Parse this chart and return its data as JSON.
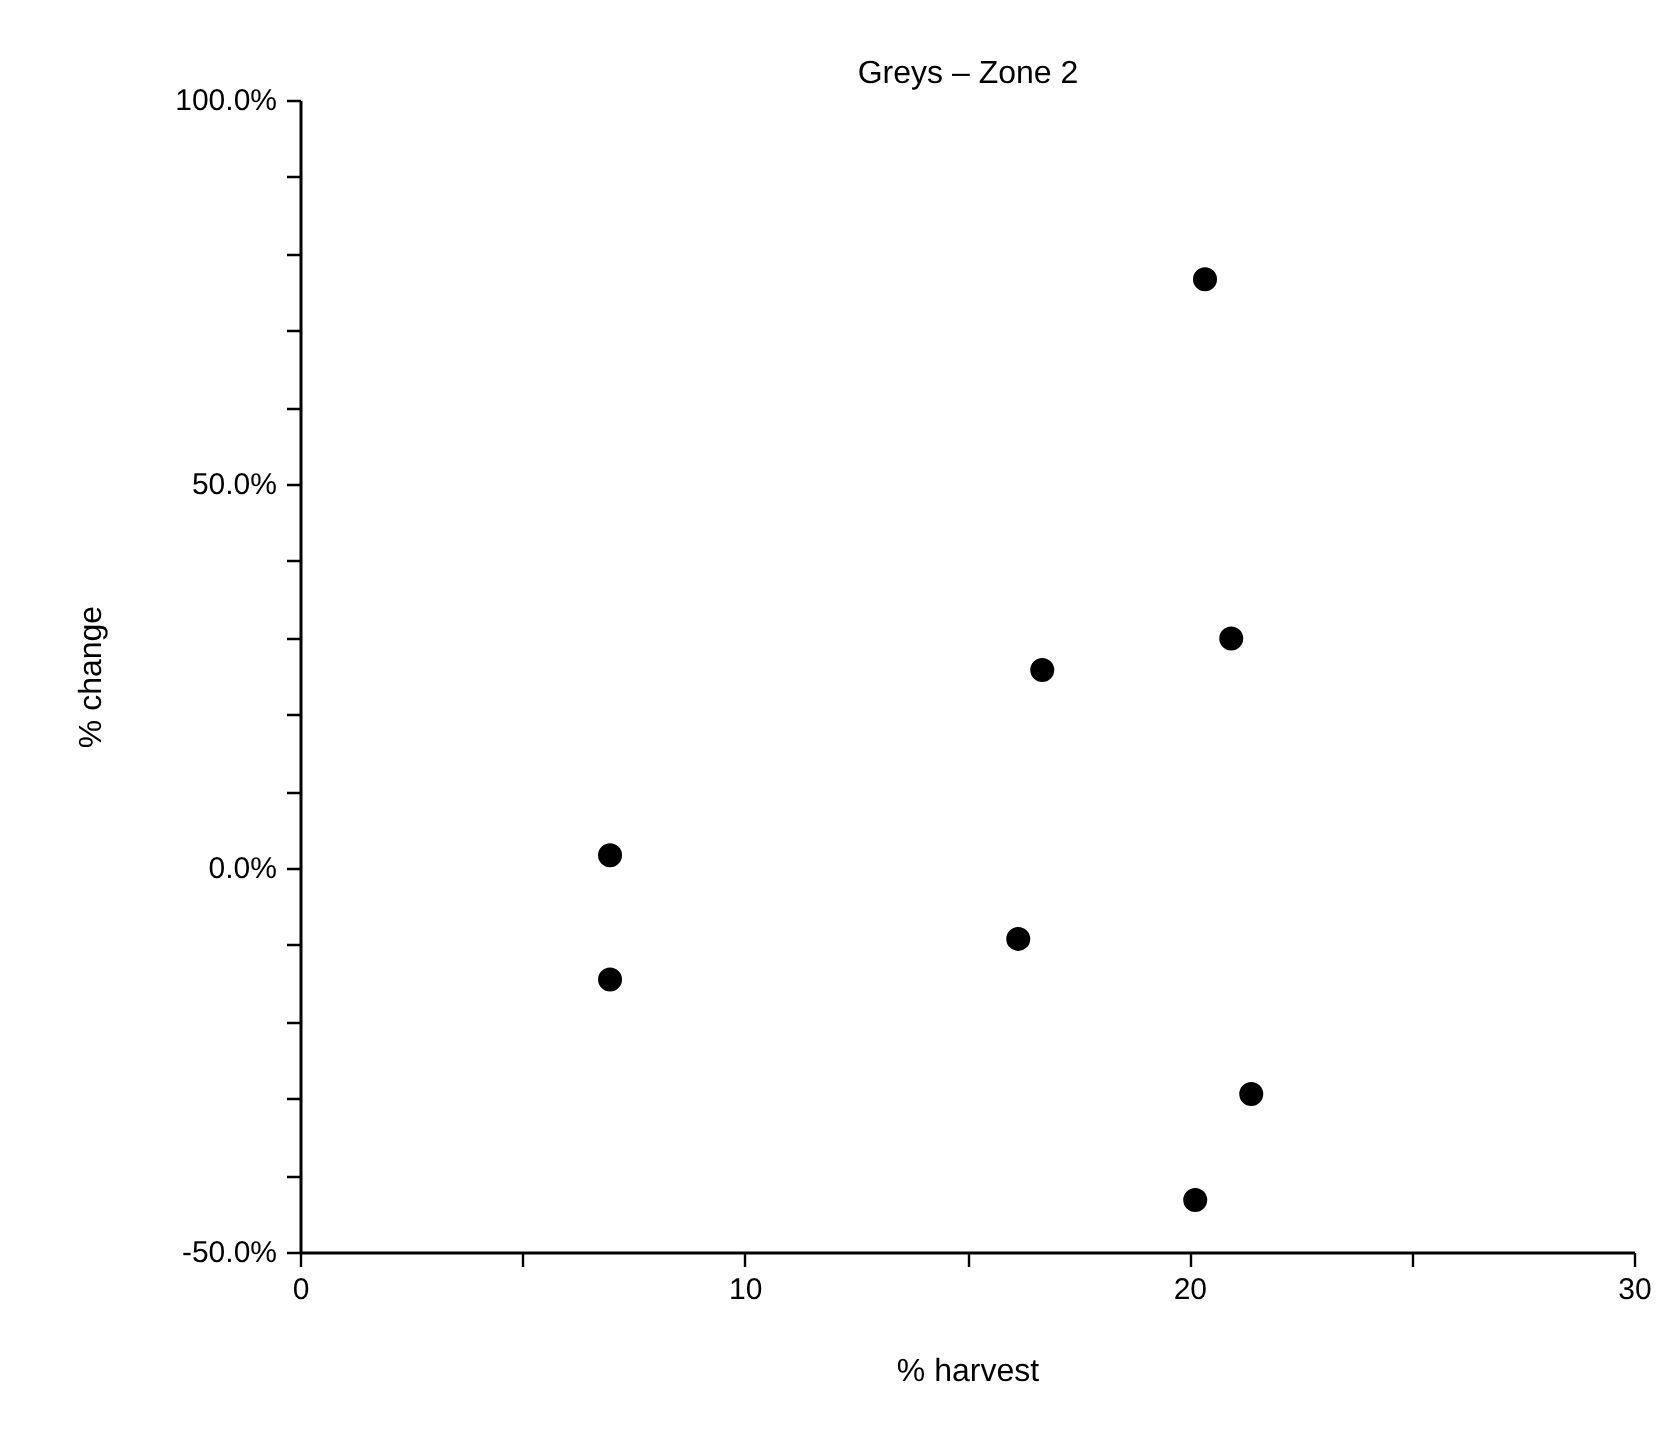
{
  "chart_data": {
    "type": "scatter",
    "title": "Greys – Zone 2",
    "xlabel": "% harvest",
    "ylabel": "% change",
    "x": [
      6.95,
      6.95,
      16.67,
      16.13,
      20.33,
      20.92,
      21.37,
      20.11
    ],
    "series": [
      {
        "color": "#000000",
        "values": [
          1.8,
          -14.4,
          25.9,
          -9.1,
          76.8,
          30.0,
          -29.3,
          -43.1
        ]
      }
    ],
    "marker": "circle",
    "xlim": [
      0,
      30
    ],
    "ylim": [
      -50,
      100
    ],
    "xticks": [
      0,
      {
        "value": 5,
        "label": null
      },
      10,
      {
        "value": 15,
        "label": null
      },
      20,
      {
        "value": 25,
        "label": null
      },
      30
    ],
    "yticks": [
      {
        "value": -50,
        "label": "-50.0%"
      },
      {
        "value": -40,
        "label": null
      },
      {
        "value": -30,
        "label": null
      },
      {
        "value": -20,
        "label": null
      },
      {
        "value": -10,
        "label": null
      },
      {
        "value": 0,
        "label": "0.0%"
      },
      {
        "value": 10,
        "label": null
      },
      {
        "value": 20,
        "label": null
      },
      {
        "value": 30,
        "label": null
      },
      {
        "value": 40,
        "label": null
      },
      {
        "value": 50,
        "label": "50.0%"
      },
      {
        "value": 60,
        "label": null
      },
      {
        "value": 70,
        "label": null
      },
      {
        "value": 80,
        "label": null
      },
      {
        "value": 90,
        "label": null
      },
      {
        "value": 100,
        "label": "100.0%"
      }
    ],
    "grid": false
  }
}
